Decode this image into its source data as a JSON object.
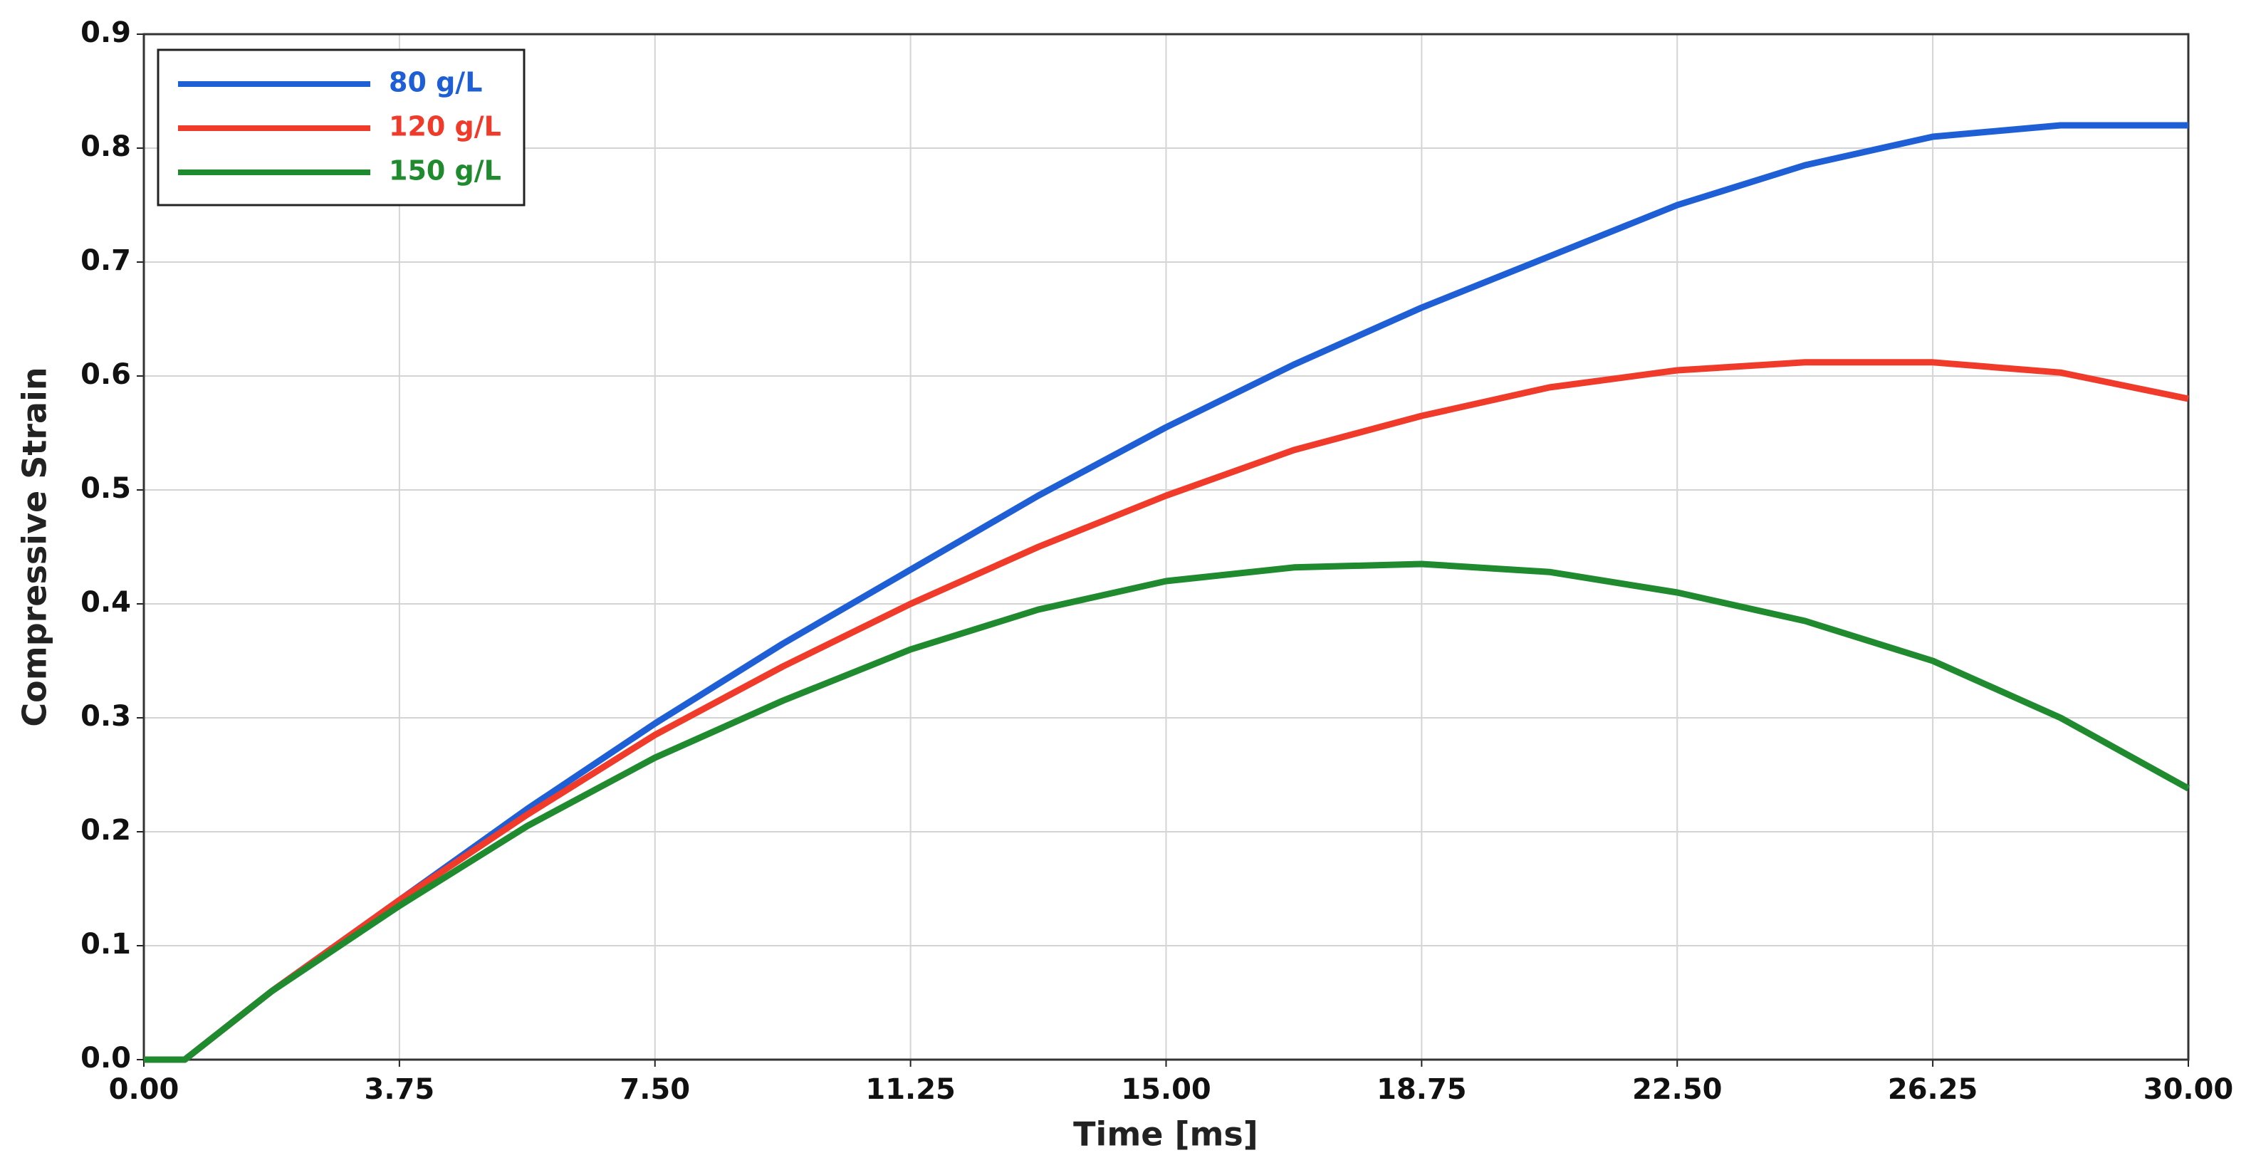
{
  "chart_data": {
    "type": "line",
    "xlabel": "Time [ms]",
    "ylabel": "Compressive Strain",
    "x": [
      0,
      0.6,
      1.875,
      3.75,
      5.625,
      7.5,
      9.375,
      11.25,
      13.125,
      15,
      16.875,
      18.75,
      20.625,
      22.5,
      24.375,
      26.25,
      28.125,
      30
    ],
    "series": [
      {
        "name": "80 g/L",
        "color": "#1f5fd6",
        "values": [
          0,
          0,
          0.06,
          0.14,
          0.22,
          0.295,
          0.365,
          0.43,
          0.495,
          0.555,
          0.61,
          0.66,
          0.705,
          0.75,
          0.785,
          0.81,
          0.82,
          0.82
        ]
      },
      {
        "name": "120 g/L",
        "color": "#f03a2a",
        "values": [
          0,
          0,
          0.06,
          0.14,
          0.215,
          0.285,
          0.345,
          0.4,
          0.45,
          0.495,
          0.535,
          0.565,
          0.59,
          0.605,
          0.612,
          0.612,
          0.603,
          0.58
        ]
      },
      {
        "name": "150 g/L",
        "color": "#1f8a2e",
        "values": [
          0,
          0,
          0.06,
          0.135,
          0.205,
          0.265,
          0.315,
          0.36,
          0.395,
          0.42,
          0.432,
          0.435,
          0.428,
          0.41,
          0.385,
          0.35,
          0.3,
          0.238
        ]
      }
    ],
    "xlim": [
      0,
      30
    ],
    "xticks": [
      {
        "value": 0,
        "label": "0.00"
      },
      {
        "value": 3.75,
        "label": "3.75"
      },
      {
        "value": 7.5,
        "label": "7.50"
      },
      {
        "value": 11.25,
        "label": "11.25"
      },
      {
        "value": 15,
        "label": "15.00"
      },
      {
        "value": 18.75,
        "label": "18.75"
      },
      {
        "value": 22.5,
        "label": "22.50"
      },
      {
        "value": 26.25,
        "label": "26.25"
      },
      {
        "value": 30,
        "label": "30.00"
      }
    ],
    "ylim": [
      0,
      0.9
    ],
    "yticks": [
      {
        "value": 0,
        "label": "0.0"
      },
      0.1,
      0.2,
      0.3,
      0.4,
      0.5,
      0.6,
      0.7,
      0.8,
      0.9
    ],
    "grid": true,
    "legend": "upper left"
  }
}
